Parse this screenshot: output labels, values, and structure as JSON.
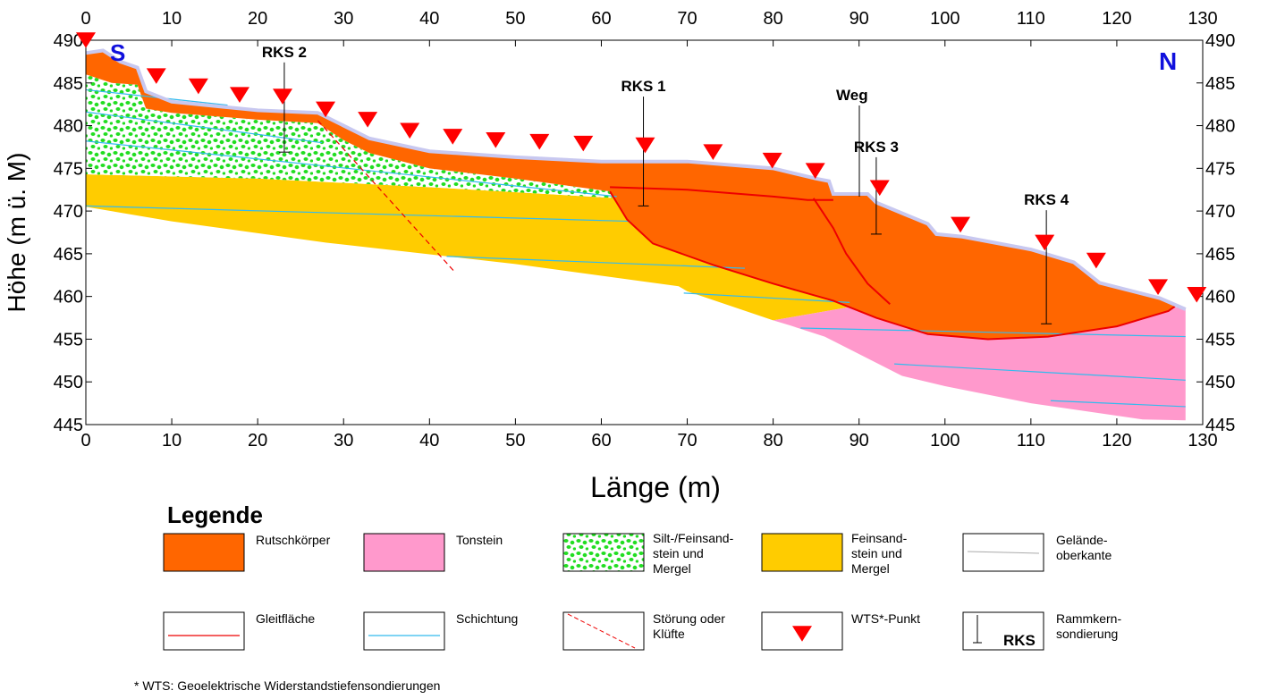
{
  "chart_data": {
    "type": "cross-section",
    "xlabel": "Länge (m)",
    "ylabel": "Höhe (m ü. M)",
    "xlim": [
      0,
      130
    ],
    "ylim": [
      445,
      490
    ],
    "xticks": [
      0,
      10,
      20,
      30,
      40,
      50,
      60,
      70,
      80,
      90,
      100,
      110,
      120,
      130
    ],
    "yticks": [
      445,
      450,
      455,
      460,
      465,
      470,
      475,
      480,
      485,
      490
    ],
    "annotations": {
      "south": "S",
      "north": "N",
      "path": "Weg"
    },
    "layers": [
      {
        "name": [
          "Rutschkörper"
        ],
        "color": "#ff6600",
        "x": [
          0,
          2,
          4,
          6,
          7,
          10,
          20,
          27,
          30,
          33,
          40,
          50,
          60,
          70,
          80,
          85,
          86.5,
          87,
          91,
          92,
          98,
          99,
          102,
          110,
          115,
          118,
          125,
          127,
          126,
          120,
          112,
          105,
          98,
          92,
          87,
          80,
          73,
          66,
          63,
          61,
          50,
          40,
          33,
          30,
          27,
          20,
          10,
          7,
          6,
          3,
          0
        ],
        "y": [
          488.5,
          488.8,
          487.5,
          486.8,
          484,
          482.8,
          481.8,
          481.5,
          480,
          478.5,
          477,
          476.3,
          475.8,
          475.8,
          475,
          473.8,
          473.5,
          472,
          472,
          471,
          468.5,
          467.3,
          467,
          465.5,
          464,
          461.6,
          459.8,
          459,
          458.3,
          456.5,
          455.3,
          455,
          455.6,
          457.5,
          459.5,
          461.5,
          463.7,
          466.2,
          469,
          472.3,
          473.8,
          475,
          476.8,
          478.3,
          480.3,
          480.7,
          481.5,
          482,
          484.8,
          485,
          486
        ]
      },
      {
        "name": [
          "Tonstein"
        ],
        "color": "#ff99cc",
        "x": [
          80,
          92,
          98,
          128,
          128,
          123,
          110,
          100,
          95,
          86,
          82
        ],
        "y": [
          457.2,
          459.3,
          459,
          458.7,
          445.5,
          445.6,
          447.5,
          449.5,
          450.7,
          455.3,
          456.6
        ]
      },
      {
        "name": [
          "Silt-/Feinsand-",
          "stein und",
          "Mergel"
        ],
        "color": "#22dd22",
        "x": [
          0,
          3,
          6,
          7,
          10,
          20,
          27,
          30,
          33,
          40,
          50,
          61,
          62,
          40,
          20,
          0
        ],
        "y": [
          486,
          485,
          484.8,
          482,
          481.5,
          480.7,
          480.3,
          478.3,
          476.8,
          475,
          473.8,
          472.3,
          471.5,
          472.8,
          473.8,
          474.3
        ]
      },
      {
        "name": [
          "Feinsand-",
          "stein und",
          "Mergel"
        ],
        "color": "#ffcc00",
        "x": [
          0,
          20,
          40,
          62,
          66,
          73,
          80,
          87,
          92,
          80,
          70,
          69,
          50,
          28,
          10,
          0
        ],
        "y": [
          474.3,
          473.8,
          472.8,
          471.5,
          466.2,
          463.7,
          461.5,
          459.5,
          459.3,
          457.2,
          460.6,
          461.2,
          463.8,
          466.3,
          468.8,
          470.5
        ]
      }
    ],
    "lines": [
      {
        "name": [
          "Gelände-",
          "oberkante"
        ],
        "color": "#c8c8f0",
        "dashed": false,
        "paths": [
          {
            "x": [
              0,
              2,
              4,
              6,
              7,
              10,
              20,
              27,
              30,
              33,
              40,
              50,
              60,
              70,
              80,
              85,
              86.5,
              87,
              91,
              92,
              98,
              99,
              102,
              110,
              115,
              118,
              125,
              128
            ],
            "y": [
              488.5,
              488.8,
              487.5,
              486.8,
              484,
              482.8,
              481.8,
              481.5,
              480,
              478.5,
              477,
              476.3,
              475.8,
              475.8,
              475,
              473.8,
              473.5,
              472,
              472,
              471,
              468.5,
              467.3,
              467,
              465.5,
              464,
              461.6,
              459.8,
              458.5
            ]
          }
        ]
      },
      {
        "name": [
          "Gleitfläche"
        ],
        "color": "#ee0000",
        "dashed": false,
        "paths": [
          {
            "x": [
              61,
              63,
              66,
              73,
              80,
              87,
              92,
              98,
              105,
              112,
              120,
              126,
              127
            ],
            "y": [
              472.3,
              469,
              466.2,
              463.7,
              461.5,
              459.5,
              457.5,
              455.6,
              455,
              455.3,
              456.5,
              458.3,
              459
            ]
          },
          {
            "x": [
              61,
              70,
              80,
              84,
              87
            ],
            "y": [
              472.8,
              472.5,
              471.7,
              471.3,
              471.3
            ]
          },
          {
            "x": [
              84.7,
              87,
              88.5,
              91,
              93.6
            ],
            "y": [
              471.5,
              468,
              465,
              461.5,
              459.1
            ]
          }
        ]
      },
      {
        "name": [
          "Schichtung"
        ],
        "color": "#33bbee",
        "dashed": false,
        "paths": [
          {
            "x": [
              0,
              16.5
            ],
            "y": [
              484.2,
              482.4
            ]
          },
          {
            "x": [
              0,
              27.5
            ],
            "y": [
              481.6,
              478
            ]
          },
          {
            "x": [
              0,
              61.8
            ],
            "y": [
              478.2,
              471.7
            ]
          },
          {
            "x": [
              0,
              63.4
            ],
            "y": [
              470.6,
              468.8
            ]
          },
          {
            "x": [
              42,
              76.7
            ],
            "y": [
              464.7,
              463.3
            ]
          },
          {
            "x": [
              69.6,
              88.9
            ],
            "y": [
              460.4,
              459.3
            ]
          },
          {
            "x": [
              83.2,
              128
            ],
            "y": [
              456.3,
              455.3
            ]
          },
          {
            "x": [
              94.1,
              128
            ],
            "y": [
              452.1,
              450.2
            ]
          },
          {
            "x": [
              112.3,
              128
            ],
            "y": [
              447.8,
              447.1
            ]
          }
        ]
      },
      {
        "name": [
          "Störung oder",
          "Klüfte"
        ],
        "color": "#ee0000",
        "dashed": true,
        "paths": [
          {
            "x": [
              27,
              43
            ],
            "y": [
              480.6,
              462.8
            ]
          }
        ]
      }
    ],
    "wts": {
      "name": [
        "WTS*-Punkt"
      ],
      "color": "#ff0000",
      "x": [
        0,
        8.2,
        13.1,
        17.9,
        22.9,
        27.9,
        32.8,
        37.7,
        42.7,
        47.7,
        52.8,
        57.9,
        65.1,
        73,
        79.9,
        84.9,
        92.4,
        101.8,
        111.6,
        117.6,
        124.8,
        129.3
      ],
      "y": [
        490,
        485.8,
        484.6,
        483.6,
        483.4,
        481.9,
        480.7,
        479.4,
        478.7,
        478.3,
        478.1,
        477.9,
        477.7,
        476.9,
        475.9,
        474.7,
        472.7,
        468.4,
        466.3,
        464.2,
        461.1,
        460.2
      ]
    },
    "rks": {
      "name": [
        "Rammkern-",
        "sondierung"
      ],
      "symbol": "RKS",
      "labels": [
        "RKS 2",
        "RKS 1",
        "RKS 3",
        "RKS 4"
      ],
      "x": [
        23.1,
        64.9,
        92.0,
        111.8
      ],
      "top": [
        487.4,
        483.4,
        476.3,
        470.1
      ],
      "bottom": [
        476.9,
        470.6,
        467.3,
        456.8
      ]
    },
    "legend_title": "Legende",
    "footnote": "* WTS: Geoelektrische Widerstandstiefensondierungen"
  }
}
